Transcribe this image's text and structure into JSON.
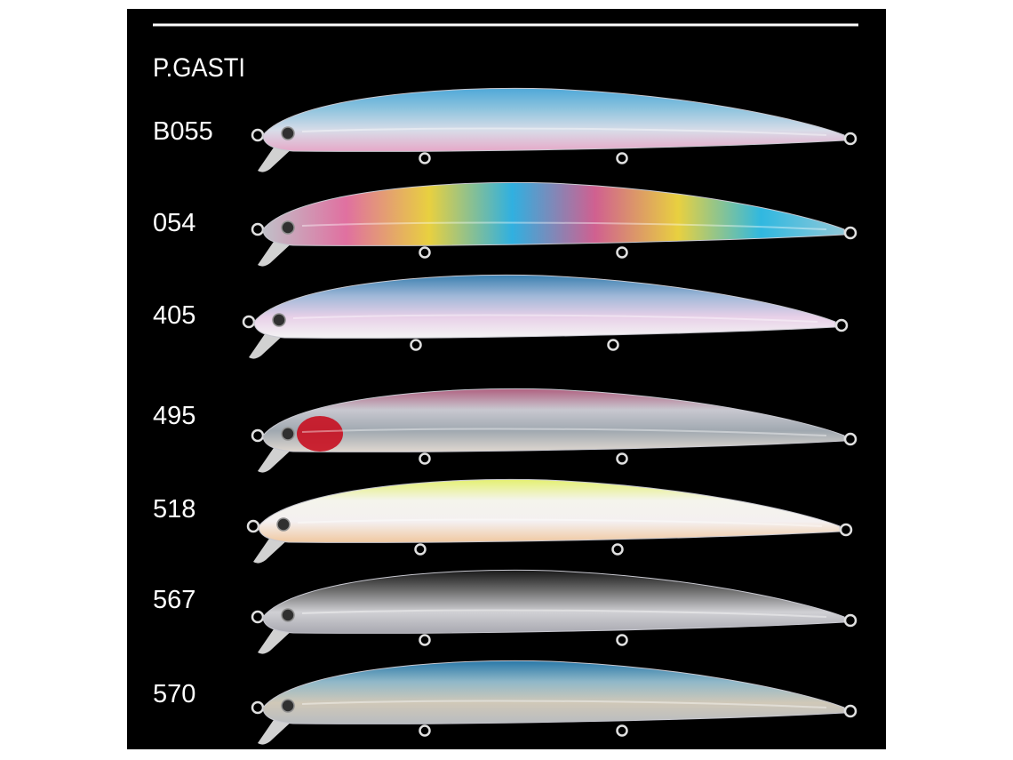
{
  "header": {
    "title": "P.GASTI"
  },
  "lures": [
    {
      "code": "B055"
    },
    {
      "code": "054"
    },
    {
      "code": "405"
    },
    {
      "code": "495"
    },
    {
      "code": "518"
    },
    {
      "code": "567"
    },
    {
      "code": "570"
    }
  ]
}
